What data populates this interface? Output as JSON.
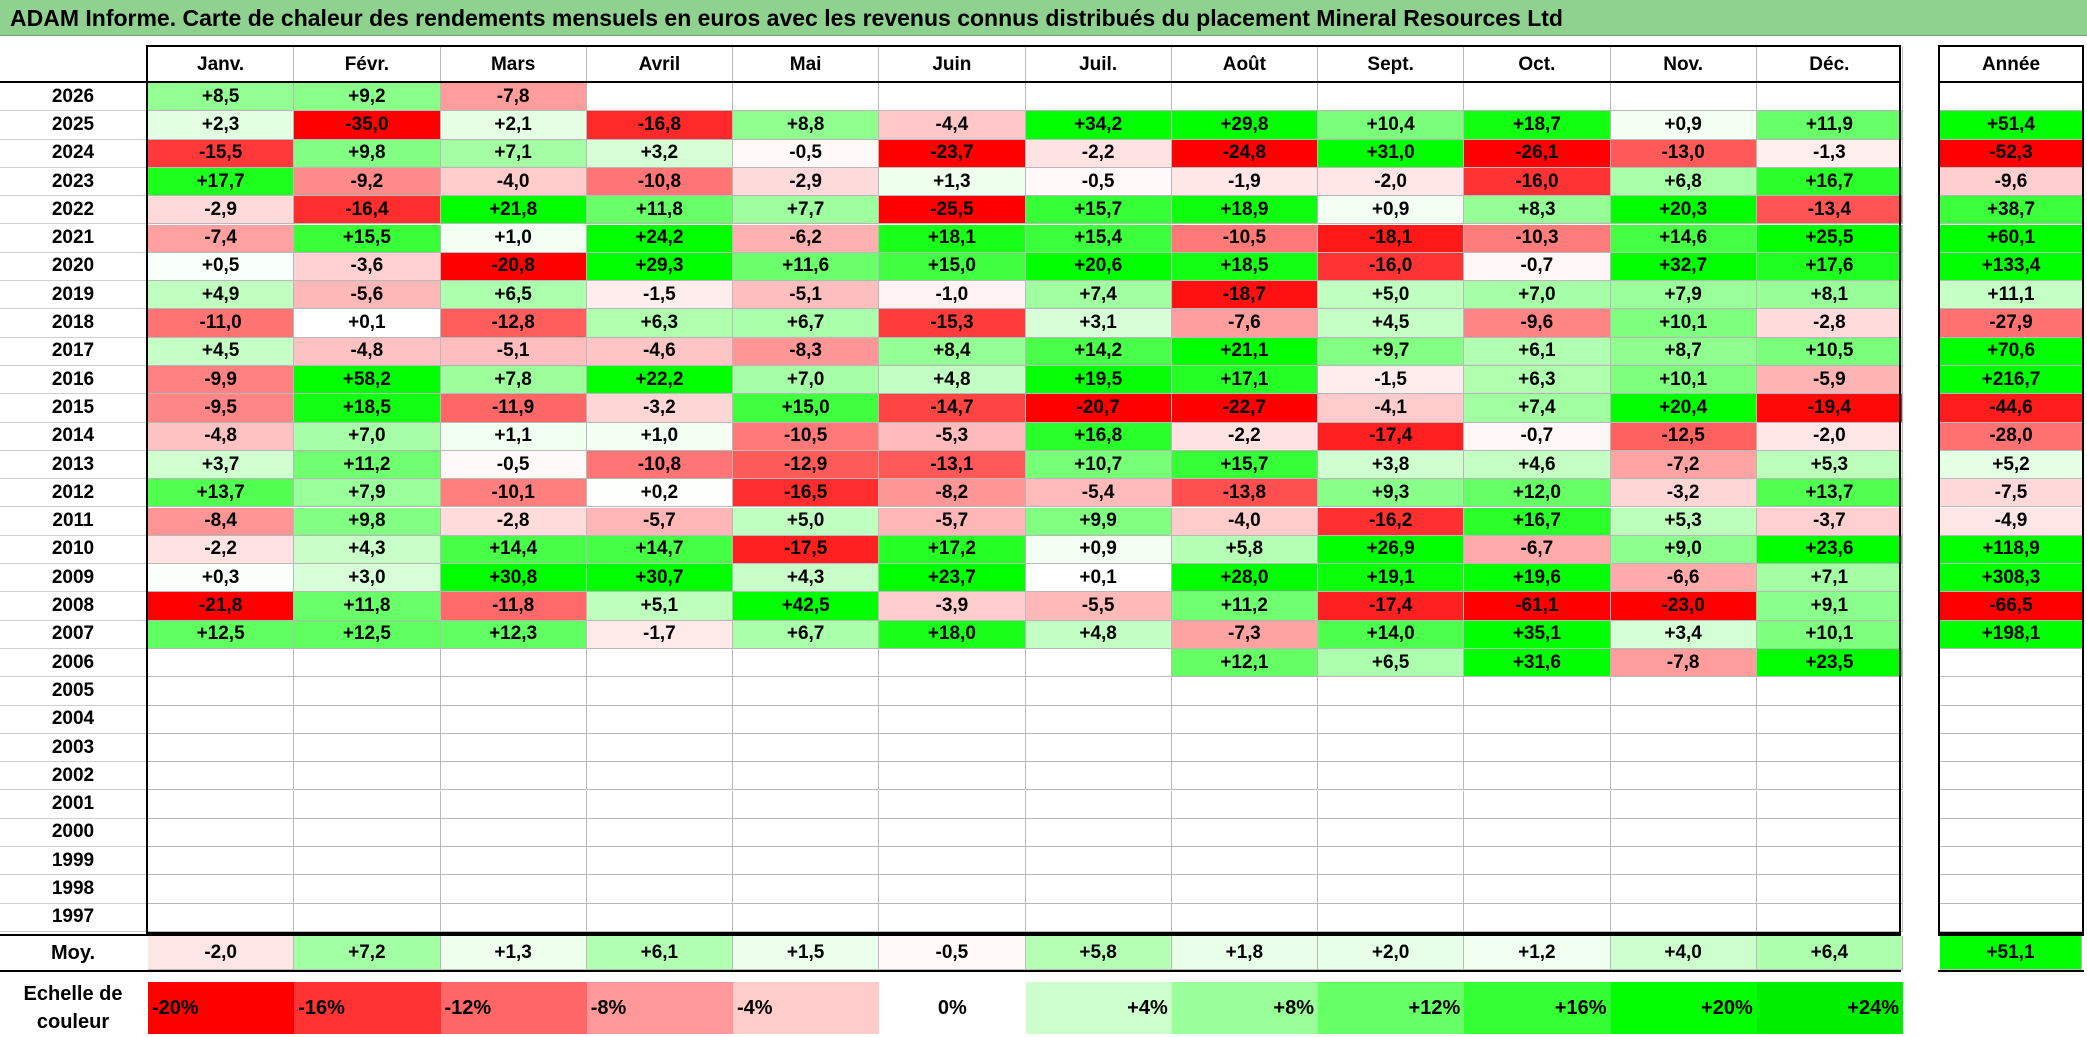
{
  "title": "ADAM Informe. Carte de chaleur des rendements mensuels en euros avec les revenus connus distribués du placement Mineral Resources Ltd",
  "chart_data": {
    "type": "heatmap",
    "columns": [
      "Janv.",
      "Févr.",
      "Mars",
      "Avril",
      "Mai",
      "Juin",
      "Juil.",
      "Août",
      "Sept.",
      "Oct.",
      "Nov.",
      "Déc."
    ],
    "year_column_label": "Année",
    "rows": [
      {
        "year": "2026",
        "months": [
          "+8,5",
          "+9,2",
          "-7,8",
          "",
          "",
          "",
          "",
          "",
          "",
          "",
          "",
          ""
        ],
        "annual": ""
      },
      {
        "year": "2025",
        "months": [
          "+2,3",
          "-35,0",
          "+2,1",
          "-16,8",
          "+8,8",
          "-4,4",
          "+34,2",
          "+29,8",
          "+10,4",
          "+18,7",
          "+0,9",
          "+11,9"
        ],
        "annual": "+51,4"
      },
      {
        "year": "2024",
        "months": [
          "-15,5",
          "+9,8",
          "+7,1",
          "+3,2",
          "-0,5",
          "-23,7",
          "-2,2",
          "-24,8",
          "+31,0",
          "-26,1",
          "-13,0",
          "-1,3"
        ],
        "annual": "-52,3"
      },
      {
        "year": "2023",
        "months": [
          "+17,7",
          "-9,2",
          "-4,0",
          "-10,8",
          "-2,9",
          "+1,3",
          "-0,5",
          "-1,9",
          "-2,0",
          "-16,0",
          "+6,8",
          "+16,7"
        ],
        "annual": "-9,6"
      },
      {
        "year": "2022",
        "months": [
          "-2,9",
          "-16,4",
          "+21,8",
          "+11,8",
          "+7,7",
          "-25,5",
          "+15,7",
          "+18,9",
          "+0,9",
          "+8,3",
          "+20,3",
          "-13,4"
        ],
        "annual": "+38,7"
      },
      {
        "year": "2021",
        "months": [
          "-7,4",
          "+15,5",
          "+1,0",
          "+24,2",
          "-6,2",
          "+18,1",
          "+15,4",
          "-10,5",
          "-18,1",
          "-10,3",
          "+14,6",
          "+25,5"
        ],
        "annual": "+60,1"
      },
      {
        "year": "2020",
        "months": [
          "+0,5",
          "-3,6",
          "-20,8",
          "+29,3",
          "+11,6",
          "+15,0",
          "+20,6",
          "+18,5",
          "-16,0",
          "-0,7",
          "+32,7",
          "+17,6"
        ],
        "annual": "+133,4"
      },
      {
        "year": "2019",
        "months": [
          "+4,9",
          "-5,6",
          "+6,5",
          "-1,5",
          "-5,1",
          "-1,0",
          "+7,4",
          "-18,7",
          "+5,0",
          "+7,0",
          "+7,9",
          "+8,1"
        ],
        "annual": "+11,1"
      },
      {
        "year": "2018",
        "months": [
          "-11,0",
          "+0,1",
          "-12,8",
          "+6,3",
          "+6,7",
          "-15,3",
          "+3,1",
          "-7,6",
          "+4,5",
          "-9,6",
          "+10,1",
          "-2,8"
        ],
        "annual": "-27,9"
      },
      {
        "year": "2017",
        "months": [
          "+4,5",
          "-4,8",
          "-5,1",
          "-4,6",
          "-8,3",
          "+8,4",
          "+14,2",
          "+21,1",
          "+9,7",
          "+6,1",
          "+8,7",
          "+10,5"
        ],
        "annual": "+70,6"
      },
      {
        "year": "2016",
        "months": [
          "-9,9",
          "+58,2",
          "+7,8",
          "+22,2",
          "+7,0",
          "+4,8",
          "+19,5",
          "+17,1",
          "-1,5",
          "+6,3",
          "+10,1",
          "-5,9"
        ],
        "annual": "+216,7"
      },
      {
        "year": "2015",
        "months": [
          "-9,5",
          "+18,5",
          "-11,9",
          "-3,2",
          "+15,0",
          "-14,7",
          "-20,7",
          "-22,7",
          "-4,1",
          "+7,4",
          "+20,4",
          "-19,4"
        ],
        "annual": "-44,6"
      },
      {
        "year": "2014",
        "months": [
          "-4,8",
          "+7,0",
          "+1,1",
          "+1,0",
          "-10,5",
          "-5,3",
          "+16,8",
          "-2,2",
          "-17,4",
          "-0,7",
          "-12,5",
          "-2,0"
        ],
        "annual": "-28,0"
      },
      {
        "year": "2013",
        "months": [
          "+3,7",
          "+11,2",
          "-0,5",
          "-10,8",
          "-12,9",
          "-13,1",
          "+10,7",
          "+15,7",
          "+3,8",
          "+4,6",
          "-7,2",
          "+5,3"
        ],
        "annual": "+5,2"
      },
      {
        "year": "2012",
        "months": [
          "+13,7",
          "+7,9",
          "-10,1",
          "+0,2",
          "-16,5",
          "-8,2",
          "-5,4",
          "-13,8",
          "+9,3",
          "+12,0",
          "-3,2",
          "+13,7"
        ],
        "annual": "-7,5"
      },
      {
        "year": "2011",
        "months": [
          "-8,4",
          "+9,8",
          "-2,8",
          "-5,7",
          "+5,0",
          "-5,7",
          "+9,9",
          "-4,0",
          "-16,2",
          "+16,7",
          "+5,3",
          "-3,7"
        ],
        "annual": "-4,9"
      },
      {
        "year": "2010",
        "months": [
          "-2,2",
          "+4,3",
          "+14,4",
          "+14,7",
          "-17,5",
          "+17,2",
          "+0,9",
          "+5,8",
          "+26,9",
          "-6,7",
          "+9,0",
          "+23,6"
        ],
        "annual": "+118,9"
      },
      {
        "year": "2009",
        "months": [
          "+0,3",
          "+3,0",
          "+30,8",
          "+30,7",
          "+4,3",
          "+23,7",
          "+0,1",
          "+28,0",
          "+19,1",
          "+19,6",
          "-6,6",
          "+7,1"
        ],
        "annual": "+308,3"
      },
      {
        "year": "2008",
        "months": [
          "-21,8",
          "+11,8",
          "-11,8",
          "+5,1",
          "+42,5",
          "-3,9",
          "-5,5",
          "+11,2",
          "-17,4",
          "-61,1",
          "-23,0",
          "+9,1"
        ],
        "annual": "-66,5"
      },
      {
        "year": "2007",
        "months": [
          "+12,5",
          "+12,5",
          "+12,3",
          "-1,7",
          "+6,7",
          "+18,0",
          "+4,8",
          "-7,3",
          "+14,0",
          "+35,1",
          "+3,4",
          "+10,1"
        ],
        "annual": "+198,1"
      },
      {
        "year": "2006",
        "months": [
          "",
          "",
          "",
          "",
          "",
          "",
          "",
          "+12,1",
          "+6,5",
          "+31,6",
          "-7,8",
          "+23,5"
        ],
        "annual": ""
      },
      {
        "year": "2005",
        "months": [
          "",
          "",
          "",
          "",
          "",
          "",
          "",
          "",
          "",
          "",
          "",
          ""
        ],
        "annual": ""
      },
      {
        "year": "2004",
        "months": [
          "",
          "",
          "",
          "",
          "",
          "",
          "",
          "",
          "",
          "",
          "",
          ""
        ],
        "annual": ""
      },
      {
        "year": "2003",
        "months": [
          "",
          "",
          "",
          "",
          "",
          "",
          "",
          "",
          "",
          "",
          "",
          ""
        ],
        "annual": ""
      },
      {
        "year": "2002",
        "months": [
          "",
          "",
          "",
          "",
          "",
          "",
          "",
          "",
          "",
          "",
          "",
          ""
        ],
        "annual": ""
      },
      {
        "year": "2001",
        "months": [
          "",
          "",
          "",
          "",
          "",
          "",
          "",
          "",
          "",
          "",
          "",
          ""
        ],
        "annual": ""
      },
      {
        "year": "2000",
        "months": [
          "",
          "",
          "",
          "",
          "",
          "",
          "",
          "",
          "",
          "",
          "",
          ""
        ],
        "annual": ""
      },
      {
        "year": "1999",
        "months": [
          "",
          "",
          "",
          "",
          "",
          "",
          "",
          "",
          "",
          "",
          "",
          ""
        ],
        "annual": ""
      },
      {
        "year": "1998",
        "months": [
          "",
          "",
          "",
          "",
          "",
          "",
          "",
          "",
          "",
          "",
          "",
          ""
        ],
        "annual": ""
      },
      {
        "year": "1997",
        "months": [
          "",
          "",
          "",
          "",
          "",
          "",
          "",
          "",
          "",
          "",
          "",
          ""
        ],
        "annual": ""
      }
    ],
    "average": {
      "label": "Moy.",
      "months": [
        "-2,0",
        "+7,2",
        "+1,3",
        "+6,1",
        "+1,5",
        "-0,5",
        "+5,8",
        "+1,8",
        "+2,0",
        "+1,2",
        "+4,0",
        "+6,4"
      ],
      "annual": "+51,1"
    },
    "color_scale": {
      "label": "Echelle de couleur",
      "stops": [
        {
          "label": "-20%",
          "color": "#ff0000"
        },
        {
          "label": "-16%",
          "color": "#ff3333"
        },
        {
          "label": "-12%",
          "color": "#ff6666"
        },
        {
          "label": "-8%",
          "color": "#ff9999"
        },
        {
          "label": "-4%",
          "color": "#ffcccc"
        },
        {
          "label": "0%",
          "color": "#ffffff"
        },
        {
          "label": "+4%",
          "color": "#ccffcc"
        },
        {
          "label": "+8%",
          "color": "#99ff99"
        },
        {
          "label": "+12%",
          "color": "#66ff66"
        },
        {
          "label": "+16%",
          "color": "#33ff33"
        },
        {
          "label": "+20%",
          "color": "#00ff00"
        },
        {
          "label": "+24%",
          "color": "#00ee00"
        }
      ]
    }
  }
}
